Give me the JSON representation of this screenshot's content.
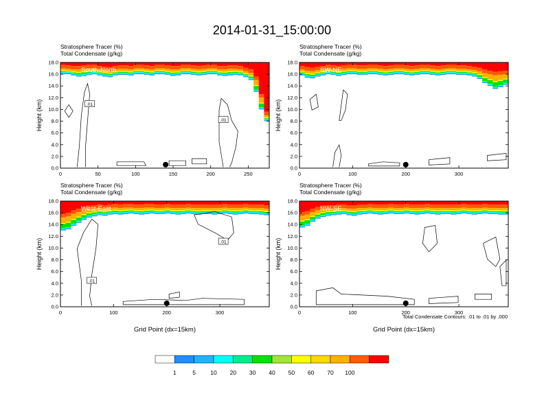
{
  "figure": {
    "title": "2014-01-31_15:00:00",
    "footnote": "Total Condensate Contours: .01 to .01 by .000"
  },
  "colors": {
    "levels": [
      "#ffffff",
      "#1e90ff",
      "#1eb4ff",
      "#00ffff",
      "#00ee8f",
      "#00e400",
      "#a2e634",
      "#ffff00",
      "#ffd800",
      "#ffb000",
      "#ff9a00",
      "#ff5a00",
      "#ff0000"
    ],
    "contour": "#000000"
  },
  "colorbar": {
    "labels": [
      "1",
      "5",
      "10",
      "20",
      "30",
      "40",
      "50",
      "60",
      "70",
      "100"
    ]
  },
  "chart_data": [
    {
      "type": "heatmap",
      "panel": "south-north",
      "title_line1": "Stratosphere Tracer   (%)",
      "title_line2": "Total Condensate   (g/kg)",
      "label": "South-North",
      "ylabel": "Height (km)",
      "xlabel": "",
      "xlim": [
        0,
        278
      ],
      "ylim": [
        0,
        18
      ],
      "xticks": [
        0,
        50,
        100,
        150,
        200,
        250
      ],
      "yticks": [
        "0.0",
        "2.0",
        "4.0",
        "6.0",
        "8.0",
        "10.0",
        "12.0",
        "14.0",
        "16.0",
        "18.0"
      ],
      "tracer_top_km": [
        16.0,
        16.0,
        15.8,
        15.6,
        15.7,
        15.9,
        16.0,
        15.8,
        15.6,
        15.5,
        15.8,
        15.9,
        15.9,
        15.8,
        16.0,
        16.0,
        15.9,
        15.8,
        16.0,
        16.0,
        15.9,
        15.7,
        15.8,
        16.0,
        16.0,
        15.9,
        15.8,
        15.9,
        16.0,
        16.0,
        15.8,
        15.7,
        15.8,
        15.9,
        15.8,
        15.5,
        15.0,
        13.0,
        10.0,
        8.0
      ],
      "tracer_mid_km": [
        17.0,
        16.9,
        16.8,
        16.8,
        16.9,
        17.0,
        17.0,
        16.8,
        16.7,
        16.6,
        16.8,
        16.9,
        16.9,
        16.8,
        17.0,
        17.0,
        16.9,
        16.8,
        17.0,
        17.0,
        16.9,
        16.8,
        16.8,
        17.0,
        17.0,
        16.9,
        16.8,
        16.9,
        17.0,
        17.0,
        16.8,
        16.8,
        16.9,
        16.9,
        16.8,
        16.5,
        16.2,
        15.0,
        12.0,
        9.0
      ],
      "contour_labels": [
        ".01",
        ".01"
      ],
      "marker_x": 140
    },
    {
      "type": "heatmap",
      "panel": "sw-ne",
      "title_line1": "Stratosphere Tracer   (%)",
      "title_line2": "Total Condensate   (g/kg)",
      "label": "SW-NE",
      "ylabel": "Height (km)",
      "xlabel": "",
      "xlim": [
        0,
        393
      ],
      "ylim": [
        0,
        18
      ],
      "xticks": [
        0,
        100,
        200,
        300
      ],
      "yticks": [
        "0.0",
        "2.0",
        "4.0",
        "6.0",
        "8.0",
        "10.0",
        "12.0",
        "14.0",
        "16.0",
        "18.0"
      ],
      "tracer_top_km": [
        15.8,
        15.4,
        15.3,
        15.6,
        15.8,
        16.0,
        15.9,
        15.7,
        15.9,
        16.0,
        16.0,
        15.9,
        15.9,
        16.0,
        16.0,
        15.9,
        15.8,
        15.9,
        16.0,
        16.0,
        15.9,
        15.8,
        15.9,
        16.0,
        16.0,
        15.9,
        15.8,
        15.9,
        16.0,
        16.0,
        15.9,
        15.9,
        15.8,
        15.6,
        15.2,
        14.5,
        14.0,
        13.5,
        13.8,
        14.2
      ],
      "tracer_mid_km": [
        16.8,
        16.6,
        16.5,
        16.7,
        16.8,
        17.0,
        16.9,
        16.8,
        16.9,
        17.0,
        17.0,
        16.9,
        16.9,
        17.0,
        17.0,
        16.9,
        16.8,
        16.9,
        17.0,
        17.0,
        16.9,
        16.8,
        16.9,
        17.0,
        17.0,
        16.9,
        16.8,
        16.9,
        17.0,
        17.0,
        16.9,
        16.9,
        16.8,
        16.7,
        16.5,
        16.2,
        16.0,
        15.8,
        15.9,
        16.0
      ],
      "contour_labels": [],
      "marker_x": 200
    },
    {
      "type": "heatmap",
      "panel": "west-east",
      "title_line1": "Stratosphere Tracer   (%)",
      "title_line2": "Total Condensate   (g/kg)",
      "label": "West-East",
      "ylabel": "Height (km)",
      "xlabel": "Grid Point (dx=15km)",
      "xlim": [
        0,
        393
      ],
      "ylim": [
        0,
        18
      ],
      "xticks": [
        0,
        100,
        200,
        300
      ],
      "yticks": [
        "0.0",
        "2.0",
        "4.0",
        "6.0",
        "8.0",
        "10.0",
        "12.0",
        "14.0",
        "16.0",
        "18.0"
      ],
      "tracer_top_km": [
        13.0,
        13.2,
        13.8,
        14.3,
        14.8,
        15.2,
        15.4,
        15.6,
        15.5,
        15.7,
        15.8,
        15.7,
        15.8,
        15.9,
        15.8,
        15.7,
        15.8,
        15.9,
        15.8,
        15.8,
        15.9,
        15.8,
        15.7,
        15.8,
        15.9,
        15.8,
        15.7,
        15.8,
        15.8,
        15.7,
        15.8,
        15.9,
        15.8,
        15.7,
        15.8,
        15.9,
        15.8,
        15.8,
        15.7,
        15.6
      ],
      "tracer_mid_km": [
        15.2,
        15.4,
        15.8,
        16.1,
        16.4,
        16.6,
        16.7,
        16.8,
        16.7,
        16.8,
        16.9,
        16.8,
        16.9,
        16.9,
        16.8,
        16.8,
        16.9,
        16.9,
        16.8,
        16.8,
        16.9,
        16.8,
        16.8,
        16.8,
        16.9,
        16.8,
        16.8,
        16.8,
        16.8,
        16.8,
        16.8,
        16.9,
        16.8,
        16.8,
        16.8,
        16.9,
        16.8,
        16.8,
        16.8,
        16.7
      ],
      "contour_labels": [
        ".01",
        ".01"
      ],
      "marker_x": 200
    },
    {
      "type": "heatmap",
      "panel": "nw-se",
      "title_line1": "Stratosphere Tracer   (%)",
      "title_line2": "Total Condensate   (g/kg)",
      "label": "NW-SE",
      "ylabel": "Height (km)",
      "xlabel": "Grid Point (dx=15km)",
      "xlim": [
        0,
        393
      ],
      "ylim": [
        0,
        18
      ],
      "xticks": [
        0,
        100,
        200,
        300
      ],
      "yticks": [
        "0.0",
        "2.0",
        "4.0",
        "6.0",
        "8.0",
        "10.0",
        "12.0",
        "14.0",
        "16.0",
        "18.0"
      ],
      "tracer_top_km": [
        13.5,
        13.8,
        14.5,
        15.0,
        15.3,
        15.5,
        15.6,
        15.7,
        15.8,
        15.6,
        15.5,
        15.7,
        15.8,
        15.9,
        15.8,
        15.7,
        15.8,
        15.9,
        15.8,
        15.8,
        15.9,
        15.8,
        15.7,
        15.8,
        15.9,
        15.8,
        15.7,
        15.8,
        15.8,
        15.7,
        15.8,
        15.9,
        15.8,
        15.7,
        15.8,
        15.9,
        15.8,
        15.8,
        15.7,
        15.7
      ],
      "tracer_mid_km": [
        15.5,
        15.7,
        16.1,
        16.4,
        16.6,
        16.7,
        16.7,
        16.8,
        16.8,
        16.7,
        16.7,
        16.8,
        16.8,
        16.9,
        16.8,
        16.8,
        16.8,
        16.9,
        16.8,
        16.8,
        16.9,
        16.8,
        16.8,
        16.8,
        16.9,
        16.8,
        16.8,
        16.8,
        16.8,
        16.8,
        16.8,
        16.9,
        16.8,
        16.8,
        16.8,
        16.9,
        16.8,
        16.8,
        16.8,
        16.8
      ],
      "contour_labels": [],
      "marker_x": 200
    }
  ]
}
